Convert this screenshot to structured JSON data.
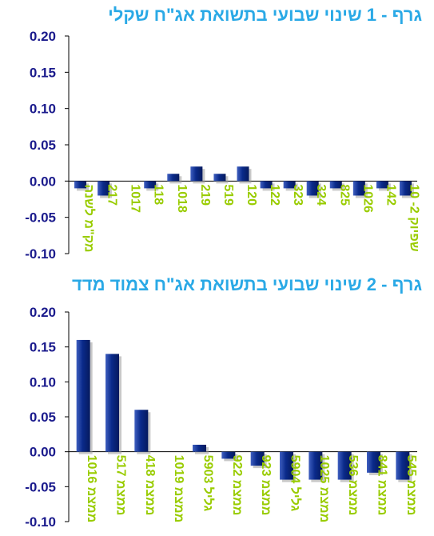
{
  "colors": {
    "title": "#2aa9e6",
    "axis_text": "#1a1a8c",
    "category_text": "#99cc00",
    "bar_fill": "#0a2a8a",
    "bar_highlight": "#3f5fc0",
    "axis_line": "#000000"
  },
  "chart_data": [
    {
      "type": "bar",
      "title": "גרף - 1  שינוי שבועי בתשואת אג\"ח שקלי",
      "xlabel": "",
      "ylabel": "",
      "ylim": [
        -0.1,
        0.2
      ],
      "yticks": [
        "0.20",
        "0.15",
        "0.10",
        "0.05",
        "0.00",
        "-0.05",
        "-0.10"
      ],
      "grid": false,
      "categories": [
        "מק\"מ לשנה",
        "217",
        "1017",
        "118",
        "1018",
        "219",
        "519",
        "120",
        "122",
        "323",
        "324",
        "825",
        "1026",
        "142",
        "שפיוק 2- 10"
      ],
      "values": [
        -0.01,
        -0.02,
        0.0,
        -0.01,
        0.01,
        0.02,
        0.01,
        0.02,
        -0.01,
        -0.01,
        -0.02,
        -0.01,
        -0.02,
        -0.01,
        -0.02
      ]
    },
    {
      "type": "bar",
      "title": "גרף - 2  שינוי שבועי בתשואת אג\"ח צמוד מדד",
      "xlabel": "",
      "ylabel": "",
      "ylim": [
        -0.1,
        0.2
      ],
      "yticks": [
        "0.20",
        "0.15",
        "0.10",
        "0.05",
        "0.00",
        "-0.05",
        "-0.10"
      ],
      "grid": false,
      "categories": [
        "ממצמ 1016",
        "ממצמ 517",
        "ממצמ 418",
        "ממצמ 1019",
        "גליל 5903",
        "ממצמ 922",
        "ממצמ 923",
        "גליל 5904",
        "ממצמ 1025",
        "ממצמ 536",
        "ממצמ 841",
        "ממצמ 545"
      ],
      "values": [
        0.16,
        0.14,
        0.06,
        0.0,
        0.01,
        -0.01,
        -0.02,
        -0.04,
        -0.04,
        -0.04,
        -0.03,
        -0.04
      ]
    }
  ]
}
